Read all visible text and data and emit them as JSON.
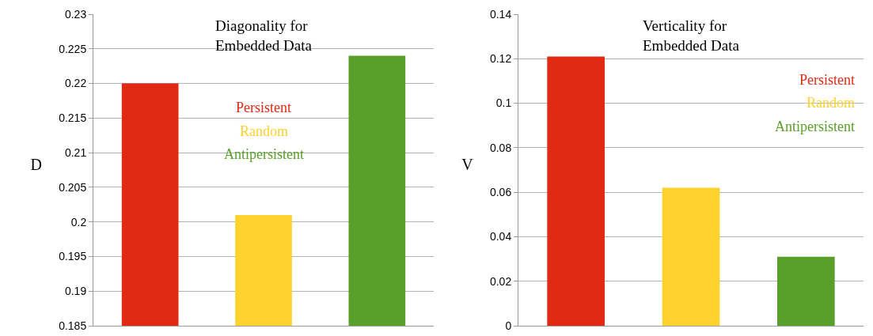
{
  "chart_data": [
    {
      "type": "bar",
      "title": "Diagonality for\nEmbedded Data",
      "ylabel": "D",
      "categories": [
        null,
        null,
        null
      ],
      "series": [
        {
          "name": "Persistent",
          "color": "#e12a13",
          "values": [
            0.22,
            null,
            null
          ]
        },
        {
          "name": "Random",
          "color": "#fdd22e",
          "values": [
            null,
            0.201,
            null
          ]
        },
        {
          "name": "Antipersistent",
          "color": "#58a02a",
          "values": [
            null,
            null,
            0.224
          ]
        }
      ],
      "ylim": [
        0.185,
        0.23
      ],
      "yticks": [
        0.185,
        0.19,
        0.195,
        0.2,
        0.205,
        0.21,
        0.215,
        0.22,
        0.225,
        0.23
      ],
      "grid": "y",
      "legend": "top"
    },
    {
      "type": "bar",
      "title": "Verticality for\nEmbedded Data",
      "ylabel": "V",
      "categories": [
        null,
        null,
        null
      ],
      "series": [
        {
          "name": "Persistent",
          "color": "#e12a13",
          "values": [
            0.121,
            null,
            null
          ]
        },
        {
          "name": "Random",
          "color": "#fdd22e",
          "values": [
            null,
            0.062,
            null
          ]
        },
        {
          "name": "Antipersistent",
          "color": "#58a02a",
          "values": [
            null,
            null,
            0.031
          ]
        }
      ],
      "ylim": [
        0,
        0.14
      ],
      "yticks": [
        0,
        0.02,
        0.04,
        0.06,
        0.08,
        0.1,
        0.12,
        0.14
      ],
      "grid": "y",
      "legend": "top right"
    }
  ]
}
